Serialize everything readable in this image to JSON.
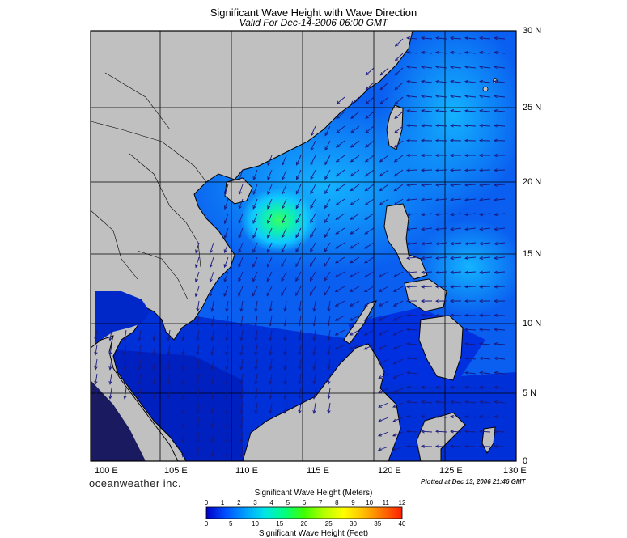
{
  "title": "Significant Wave Height with Wave Direction",
  "subtitle": "Valid For Dec-14-2006 06:00 GMT",
  "lat_labels": [
    "30 N",
    "25 N",
    "20 N",
    "15 N",
    "10 N",
    "5 N",
    "0"
  ],
  "lon_labels": [
    "100 E",
    "105 E",
    "110 E",
    "115 E",
    "120 E",
    "125 E",
    "130 E"
  ],
  "brand": "oceanweather inc.",
  "plotted": "Plotted at Dec 13, 2006 21:46 GMT",
  "colorbar": {
    "title_top": "Significant Wave Height (Meters)",
    "title_bottom": "Significant Wave Height (Feet)",
    "meters": [
      "0",
      "1",
      "2",
      "3",
      "4",
      "5",
      "6",
      "7",
      "8",
      "9",
      "10",
      "11",
      "12"
    ],
    "feet": [
      "0",
      "5",
      "10",
      "15",
      "20",
      "25",
      "30",
      "35",
      "40"
    ],
    "colors": [
      "#0000c8",
      "#0050ff",
      "#00b4ff",
      "#00ffc8",
      "#00ff50",
      "#a0ff00",
      "#ffff00",
      "#ffc000",
      "#ff7000",
      "#ff2000"
    ]
  },
  "colors": {
    "land": "#c0c0c0",
    "sea_low": "#0028d0",
    "sea_mid": "#0a64f0",
    "sea_high": "#10a8ff",
    "max_wave": "#30ff60",
    "arrow": "#1a1a80"
  }
}
